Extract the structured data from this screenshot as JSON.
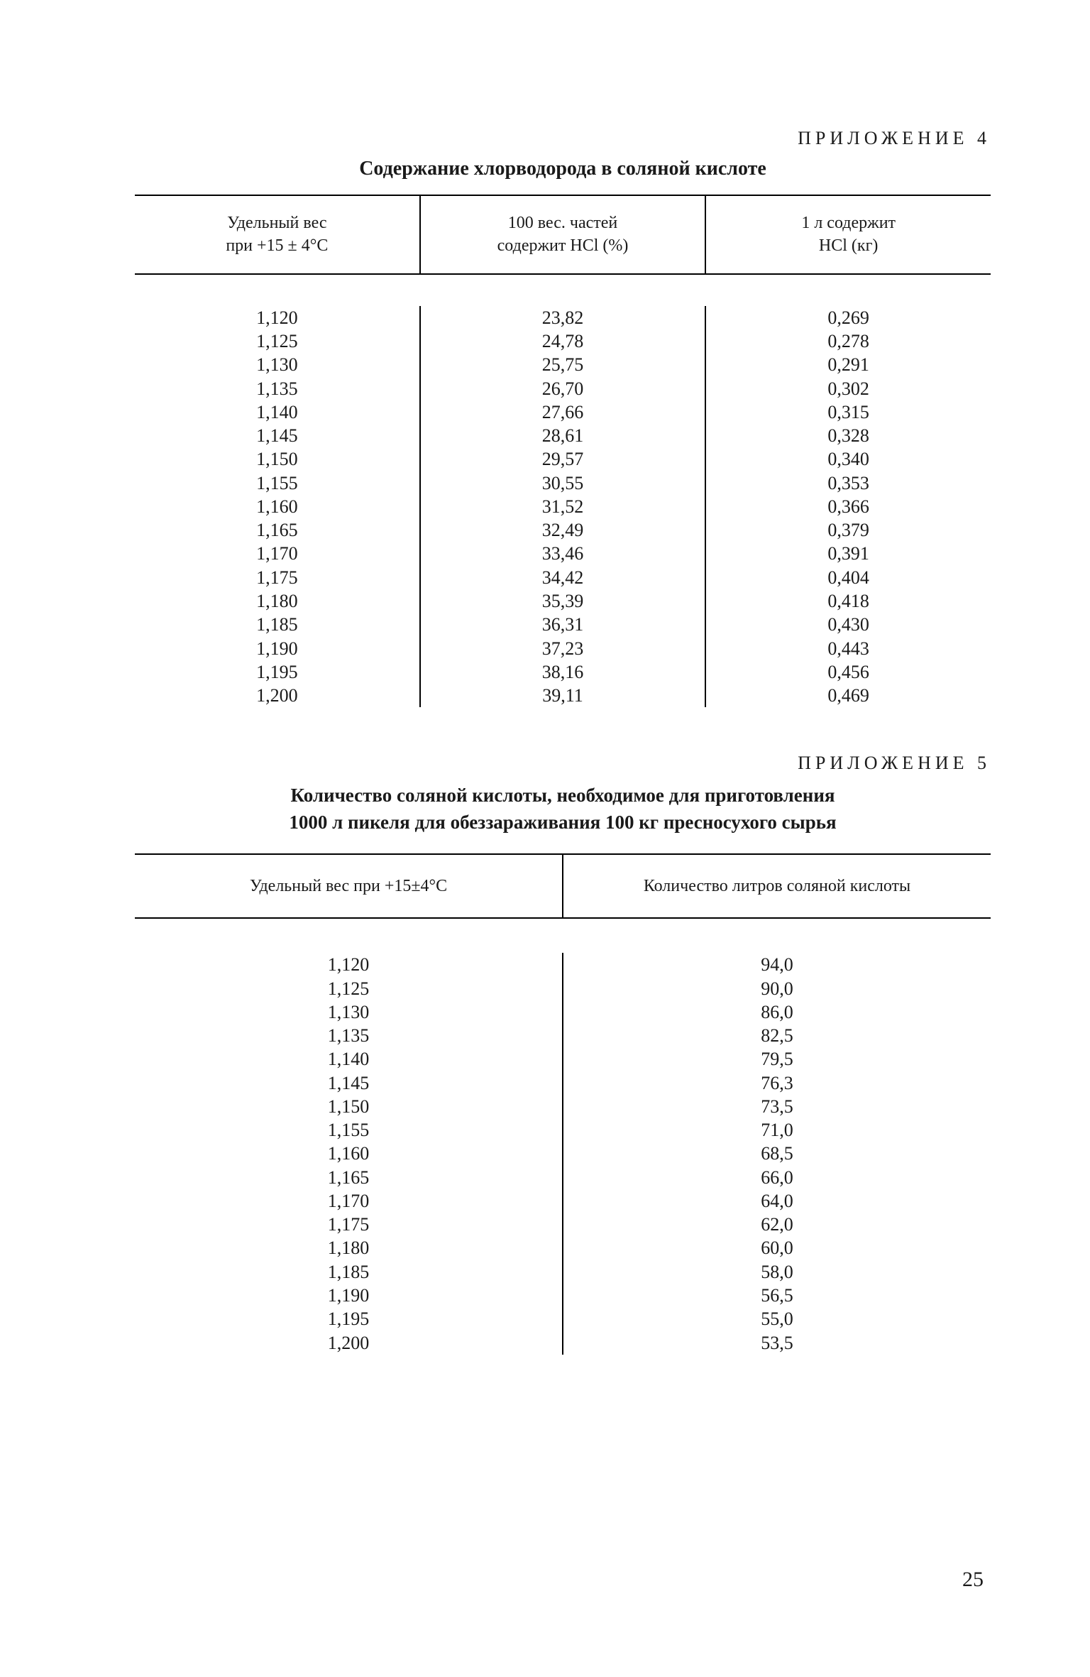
{
  "appendix4": {
    "label": "ПРИЛОЖЕНИЕ 4",
    "title": "Содержание хлорводорода в соляной кислоте",
    "table": {
      "type": "table",
      "headers": {
        "col1_line1": "Удельный вес",
        "col1_line2": "при +15 ± 4°C",
        "col2_line1": "100 вес. частей",
        "col2_line2": "содержит HCl (%)",
        "col3_line1": "1 л содержит",
        "col3_line2": "HCl (кг)"
      },
      "columns": {
        "density": [
          "1,120",
          "1,125",
          "1,130",
          "1,135",
          "1,140",
          "1,145",
          "1,150",
          "1,155",
          "1,160",
          "1,165",
          "1,170",
          "1,175",
          "1,180",
          "1,185",
          "1,190",
          "1,195",
          "1,200"
        ],
        "hcl_percent": [
          "23,82",
          "24,78",
          "25,75",
          "26,70",
          "27,66",
          "28,61",
          "29,57",
          "30,55",
          "31,52",
          "32,49",
          "33,46",
          "34,42",
          "35,39",
          "36,31",
          "37,23",
          "38,16",
          "39,11"
        ],
        "hcl_kg": [
          "0,269",
          "0,278",
          "0,291",
          "0,302",
          "0,315",
          "0,328",
          "0,340",
          "0,353",
          "0,366",
          "0,379",
          "0,391",
          "0,404",
          "0,418",
          "0,430",
          "0,443",
          "0,456",
          "0,469"
        ]
      },
      "fontsize": 26,
      "border_color": "#000000",
      "background_color": "#ffffff",
      "text_color": "#1a1a1a"
    }
  },
  "appendix5": {
    "label": "ПРИЛОЖЕНИЕ 5",
    "title_line1": "Количество соляной кислоты, необходимое для приготовления",
    "title_line2": "1000 л пикеля для обеззараживания 100 кг пресносухого сырья",
    "table": {
      "type": "table",
      "headers": {
        "col1": "Удельный вес при +15±4°C",
        "col2": "Количество литров соляной кислоты"
      },
      "columns": {
        "density": [
          "1,120",
          "1,125",
          "1,130",
          "1,135",
          "1,140",
          "1,145",
          "1,150",
          "1,155",
          "1,160",
          "1,165",
          "1,170",
          "1,175",
          "1,180",
          "1,185",
          "1,190",
          "1,195",
          "1,200"
        ],
        "liters": [
          "94,0",
          "90,0",
          "86,0",
          "82,5",
          "79,5",
          "76,3",
          "73,5",
          "71,0",
          "68,5",
          "66,0",
          "64,0",
          "62,0",
          "60,0",
          "58,0",
          "56,5",
          "55,0",
          "53,5"
        ]
      },
      "fontsize": 26,
      "border_color": "#000000",
      "background_color": "#ffffff",
      "text_color": "#1a1a1a"
    }
  },
  "page_number": "25"
}
